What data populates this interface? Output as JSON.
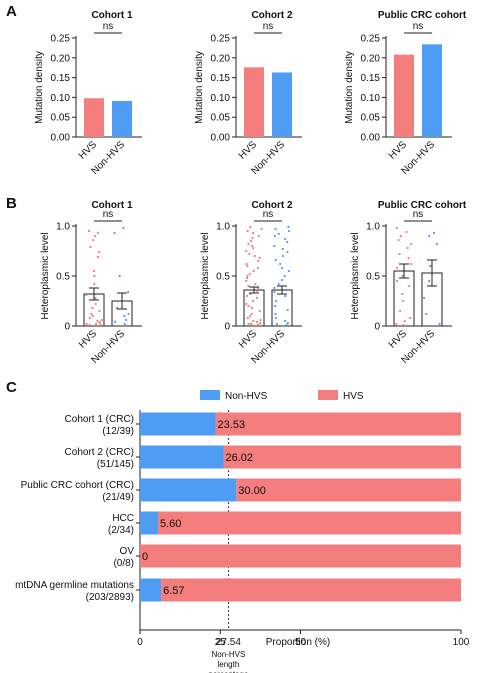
{
  "colors": {
    "hvs": "#f47e7e",
    "nonhvs": "#4f9cf4"
  },
  "panel_labels": [
    "A",
    "B",
    "C"
  ],
  "chart_data": [
    {
      "type": "bar",
      "panel": "A",
      "title": "Cohort 1",
      "ylabel": "Mutation density",
      "categories": [
        "HVS",
        "Non-HVS"
      ],
      "values": [
        0.098,
        0.091
      ],
      "ylim": [
        0,
        0.25
      ],
      "yticks": [
        "0.00",
        "0.05",
        "0.10",
        "0.15",
        "0.20",
        "0.25"
      ],
      "significance": "ns"
    },
    {
      "type": "bar",
      "panel": "A",
      "title": "Cohort 2",
      "ylabel": "Mutation density",
      "categories": [
        "HVS",
        "Non-HVS"
      ],
      "values": [
        0.176,
        0.163
      ],
      "ylim": [
        0,
        0.25
      ],
      "yticks": [
        "0.00",
        "0.05",
        "0.10",
        "0.15",
        "0.20",
        "0.25"
      ],
      "significance": "ns"
    },
    {
      "type": "bar",
      "panel": "A",
      "title": "Public CRC cohort",
      "ylabel": "Mutation density",
      "categories": [
        "HVS",
        "Non-HVS"
      ],
      "values": [
        0.208,
        0.234
      ],
      "ylim": [
        0,
        0.25
      ],
      "yticks": [
        "0.00",
        "0.05",
        "0.10",
        "0.15",
        "0.20",
        "0.25"
      ],
      "significance": "ns"
    },
    {
      "type": "scatter",
      "panel": "B",
      "title": "Cohort 1",
      "ylabel": "Heteroplasmic level",
      "categories": [
        "HVS",
        "Non-HVS"
      ],
      "means": [
        0.32,
        0.25
      ],
      "sem": [
        0.06,
        0.08
      ],
      "ylim": [
        0,
        1.0
      ],
      "yticks": [
        "0",
        "0.5",
        "1.0"
      ],
      "significance": "ns",
      "points": [
        [
          0.95,
          0.93,
          0.9,
          0.86,
          0.79,
          0.74,
          0.69,
          0.55,
          0.5,
          0.42,
          0.31,
          0.28,
          0.22,
          0.18,
          0.15,
          0.12,
          0.1,
          0.08,
          0.06,
          0.05,
          0.04,
          0.03,
          0.02,
          0.02,
          0.01,
          0.01
        ],
        [
          0.98,
          0.93,
          0.5,
          0.34,
          0.18,
          0.12,
          0.1,
          0.06,
          0.04,
          0.02
        ]
      ]
    },
    {
      "type": "scatter",
      "panel": "B",
      "title": "Cohort 2",
      "ylabel": "Heteroplasmic level",
      "categories": [
        "HVS",
        "Non-HVS"
      ],
      "means": [
        0.36,
        0.36
      ],
      "sem": [
        0.03,
        0.04
      ],
      "ylim": [
        0,
        1.0
      ],
      "yticks": [
        "0",
        "0.5",
        "1.0"
      ],
      "significance": "ns",
      "points": [
        [
          0.99,
          0.97,
          0.95,
          0.93,
          0.9,
          0.88,
          0.85,
          0.82,
          0.8,
          0.78,
          0.75,
          0.72,
          0.7,
          0.68,
          0.65,
          0.62,
          0.6,
          0.58,
          0.55,
          0.52,
          0.5,
          0.48,
          0.45,
          0.42,
          0.4,
          0.38,
          0.35,
          0.32,
          0.3,
          0.28,
          0.25,
          0.22,
          0.2,
          0.18,
          0.15,
          0.12,
          0.1,
          0.08,
          0.06,
          0.05,
          0.04,
          0.03,
          0.02,
          0.02,
          0.01,
          0.01,
          0.01,
          0.01
        ],
        [
          0.99,
          0.97,
          0.95,
          0.92,
          0.9,
          0.87,
          0.84,
          0.8,
          0.77,
          0.74,
          0.7,
          0.66,
          0.62,
          0.58,
          0.55,
          0.5,
          0.46,
          0.42,
          0.38,
          0.34,
          0.3,
          0.25,
          0.2,
          0.16,
          0.12,
          0.08,
          0.05,
          0.03,
          0.02,
          0.01,
          0.01
        ]
      ]
    },
    {
      "type": "scatter",
      "panel": "B",
      "title": "Public CRC cohort",
      "ylabel": "Heteroplasmic level",
      "categories": [
        "HVS",
        "Non-HVS"
      ],
      "means": [
        0.55,
        0.53
      ],
      "sem": [
        0.07,
        0.13
      ],
      "ylim": [
        0,
        1.0
      ],
      "yticks": [
        "0",
        "0.5",
        "1.0"
      ],
      "significance": "ns",
      "points": [
        [
          0.98,
          0.94,
          0.9,
          0.86,
          0.82,
          0.78,
          0.72,
          0.68,
          0.62,
          0.58,
          0.5,
          0.45,
          0.4,
          0.32,
          0.25,
          0.15,
          0.08,
          0.05,
          0.02,
          0.01
        ],
        [
          0.93,
          0.9,
          0.82,
          0.6,
          0.45,
          0.28,
          0.12,
          0.02
        ]
      ]
    },
    {
      "type": "bar",
      "panel": "C",
      "orientation": "horizontal",
      "stacked": true,
      "xlabel": "Proportion (%)",
      "xlim": [
        0,
        100
      ],
      "xticks": [
        "0",
        "25",
        "50",
        "100"
      ],
      "legend": [
        "Non-HVS",
        "HVS"
      ],
      "categories": [
        [
          "Cohort 1 (CRC)",
          "(12/39)"
        ],
        [
          "Cohort 2 (CRC)",
          "(51/145)"
        ],
        [
          "Public CRC cohort (CRC)",
          "(21/49)"
        ],
        [
          "HCC",
          "(2/34)"
        ],
        [
          "OV",
          "(0/8)"
        ],
        [
          "mtDNA germline mutations",
          "(203/2893)"
        ]
      ],
      "nonhvs_values": [
        23.53,
        26.02,
        30.0,
        5.6,
        0,
        6.57
      ],
      "value_labels": [
        "23.53",
        "26.02",
        "30.00",
        "5.60",
        "0",
        "6.57"
      ],
      "reference_line": {
        "value": 27.54,
        "tick_label": "27.54",
        "label_lines": [
          "Non-HVS",
          "length",
          "percentage"
        ]
      }
    }
  ]
}
